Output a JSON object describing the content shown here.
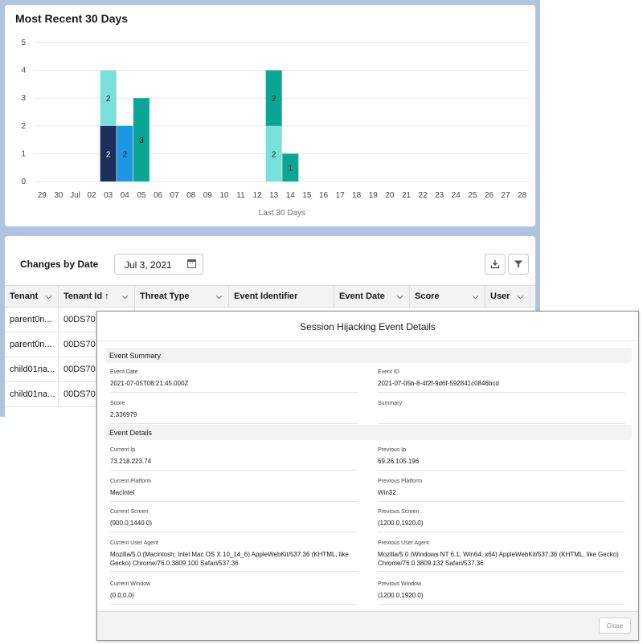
{
  "chart_card": {
    "title": "Most Recent 30 Days"
  },
  "chart_data": {
    "type": "bar",
    "stacked": true,
    "xlabel": "Last 30 Days",
    "ylabel": "",
    "ylim": [
      0,
      5
    ],
    "yticks": [
      "0",
      "1",
      "2",
      "3",
      "4",
      "5"
    ],
    "categories": [
      "29",
      "30",
      "Jul",
      "02",
      "03",
      "04",
      "05",
      "06",
      "07",
      "08",
      "09",
      "10",
      "11",
      "12",
      "13",
      "14",
      "15",
      "16",
      "17",
      "18",
      "19",
      "20",
      "21",
      "22",
      "23",
      "24",
      "25",
      "26",
      "27",
      "28"
    ],
    "segments": [
      {
        "category": "03",
        "base": 0,
        "value": 2,
        "label": "2",
        "color": "#1b2f5c",
        "label_color": "#ffffff"
      },
      {
        "category": "03",
        "base": 2,
        "value": 2,
        "label": "2",
        "color": "#7adfdb",
        "label_color": "#222222"
      },
      {
        "category": "04",
        "base": 0,
        "value": 2,
        "label": "2",
        "color": "#1b96e3",
        "label_color": "#222222"
      },
      {
        "category": "05",
        "base": 0,
        "value": 3,
        "label": "3",
        "color": "#0ba693",
        "label_color": "#222222"
      },
      {
        "category": "13",
        "base": 0,
        "value": 2,
        "label": "2",
        "color": "#7adfdb",
        "label_color": "#222222"
      },
      {
        "category": "13",
        "base": 2,
        "value": 2,
        "label": "2",
        "color": "#0ba693",
        "label_color": "#222222"
      },
      {
        "category": "14",
        "base": 0,
        "value": 1,
        "label": "1",
        "color": "#0ba693",
        "label_color": "#222222"
      }
    ],
    "grid": true
  },
  "table_card": {
    "title": "Changes by Date",
    "date_value": "Jul 3, 2021",
    "columns": [
      "Tenant",
      "Tenant Id",
      "Threat Type",
      "Event Identifier",
      "Event Date",
      "Score",
      "User"
    ],
    "sort_indicator": "↑",
    "rows": [
      [
        "parent0n...",
        "00DS70"
      ],
      [
        "parent0n...",
        "00DS70"
      ],
      [
        "child01na...",
        "00DS70"
      ],
      [
        "child01na...",
        "00DS70"
      ]
    ]
  },
  "modal": {
    "title": "Session Hijacking Event Details",
    "section1": "Event Summary",
    "section2": "Event Details",
    "fields": {
      "event_date_label": "Event Date",
      "event_date_value": "2021-07-05T08:21:45.000Z",
      "event_id_label": "Event ID",
      "event_id_value": "2021-07-05b-8-4f2f-9d6f-592841c0846bcd",
      "score_label": "Score",
      "score_value": "2.336979",
      "summary_label": "Summary",
      "summary_value": "",
      "current_ip_label": "Current Ip",
      "current_ip_value": "73.218.223.74",
      "previous_ip_label": "Previous Ip",
      "previous_ip_value": "69.26.105.196",
      "current_platform_label": "Current Platform",
      "current_platform_value": "MacIntel",
      "previous_platform_label": "Previous Platform",
      "previous_platform_value": "Win32",
      "current_screen_label": "Current Screen",
      "current_screen_value": "(900.0,1440.0)",
      "previous_screen_label": "Previous Screen",
      "previous_screen_value": "(1200.0,1920.0)",
      "current_ua_label": "Current User Agent",
      "current_ua_value": "Mozilla/5.0 (Macintosh; Intel Mac OS X 10_14_6) AppleWebKit/537.36 (KHTML, like Gecko) Chrome/76.0.3809.100 Safari/537.36",
      "previous_ua_label": "Previous User Agent",
      "previous_ua_value": "Mozilla/5.0 (Windows NT 6.1; Win64; x64) AppleWebKit/537.36 (KHTML, like Gecko) Chrome/76.0.3809.132 Safari/537.36",
      "current_window_label": "Current Window",
      "current_window_value": "(0.0,0.0)",
      "previous_window_label": "Previous Window",
      "previous_window_value": "(1200.0,1920.0)"
    },
    "close_label": "Close"
  }
}
